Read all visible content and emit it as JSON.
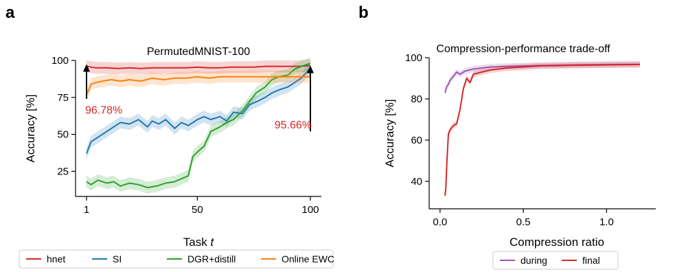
{
  "panels": {
    "a": {
      "letter": "a"
    },
    "b": {
      "letter": "b"
    }
  },
  "chart_data": [
    {
      "type": "line",
      "title": "PermutedMNIST-100",
      "xlabel": "Task t",
      "xlabel_prefix": "Task ",
      "xlabel_var": "t",
      "ylabel": "Accuracy [%]",
      "xlim": [
        1,
        100
      ],
      "ylim": [
        8,
        100
      ],
      "xticks": [
        1,
        50,
        100
      ],
      "yticks": [
        25,
        50,
        75,
        100
      ],
      "grid": false,
      "legend_position": "bottom",
      "colors": {
        "hnet": "#d62728",
        "SI": "#1f77b4",
        "DGR+distill": "#2ca02c",
        "Online EWC": "#ff7f0e"
      },
      "annotations": [
        {
          "text": "96.78%",
          "x": 1,
          "y": 97.5
        },
        {
          "text": "95.66%",
          "x": 100,
          "y": 96.5
        }
      ],
      "series": [
        {
          "name": "hnet",
          "x": [
            1,
            5,
            10,
            15,
            20,
            25,
            30,
            35,
            40,
            45,
            50,
            55,
            60,
            65,
            70,
            75,
            80,
            85,
            90,
            95,
            100
          ],
          "y": [
            96,
            95,
            95,
            94.5,
            95,
            94.5,
            95,
            95,
            95,
            95,
            95.5,
            95,
            95,
            95.5,
            95.5,
            95.5,
            96,
            96,
            96,
            96,
            96.5
          ]
        },
        {
          "name": "SI",
          "x": [
            1,
            3,
            6,
            10,
            13,
            16,
            20,
            24,
            28,
            30,
            33,
            36,
            40,
            43,
            46,
            50,
            53,
            56,
            60,
            63,
            66,
            70,
            73,
            76,
            80,
            83,
            86,
            90,
            93,
            96,
            100
          ],
          "y": [
            37,
            45,
            48,
            52,
            55,
            58,
            57,
            60,
            55,
            59,
            57,
            60,
            54,
            58,
            56,
            60,
            62,
            60,
            62,
            59,
            65,
            64,
            70,
            72,
            75,
            78,
            80,
            82,
            85,
            88,
            95
          ]
        },
        {
          "name": "DGR+distill",
          "x": [
            1,
            3,
            6,
            10,
            13,
            16,
            20,
            24,
            28,
            32,
            36,
            40,
            43,
            46,
            48,
            50,
            53,
            56,
            60,
            63,
            66,
            70,
            73,
            76,
            80,
            83,
            86,
            90,
            93,
            96,
            100
          ],
          "y": [
            18,
            16,
            19,
            17,
            18,
            15,
            17,
            16,
            14,
            15,
            17,
            18,
            20,
            22,
            35,
            38,
            42,
            52,
            55,
            58,
            60,
            66,
            72,
            78,
            82,
            87,
            89,
            90,
            94,
            96,
            98
          ]
        },
        {
          "name": "Online EWC",
          "x": [
            1,
            2,
            3,
            5,
            8,
            12,
            16,
            20,
            25,
            30,
            35,
            40,
            45,
            50,
            55,
            60,
            65,
            70,
            75,
            80,
            85,
            90,
            95,
            100
          ],
          "y": [
            77,
            80,
            84,
            85,
            86,
            87,
            86,
            87,
            86,
            88,
            87,
            88,
            88,
            89,
            88,
            89,
            89,
            89,
            89,
            89,
            89,
            89,
            89,
            89
          ]
        }
      ]
    },
    {
      "type": "line",
      "title": "Compression-performance trade-off",
      "xlabel": "Compression ratio",
      "ylabel": "Accuracy [%]",
      "xlim": [
        -0.02,
        1.25
      ],
      "ylim": [
        28,
        100
      ],
      "xticks": [
        0.0,
        0.5,
        1.0
      ],
      "xtick_labels": [
        "0.0",
        "0.5",
        "1.0"
      ],
      "yticks": [
        40,
        60,
        80,
        100
      ],
      "grid": false,
      "legend_position": "bottom",
      "colors": {
        "during": "#9b59b6",
        "final": "#d62728"
      },
      "series": [
        {
          "name": "during",
          "x": [
            0.03,
            0.04,
            0.05,
            0.06,
            0.08,
            0.1,
            0.12,
            0.15,
            0.2,
            0.3,
            0.4,
            0.5,
            0.6,
            0.8,
            1.0,
            1.2
          ],
          "y": [
            83,
            86,
            87,
            89,
            91,
            93,
            92,
            93.5,
            94.5,
            95.5,
            95.8,
            96,
            96.2,
            96.5,
            96.7,
            96.8
          ]
        },
        {
          "name": "final",
          "x": [
            0.03,
            0.035,
            0.04,
            0.05,
            0.06,
            0.08,
            0.1,
            0.12,
            0.14,
            0.16,
            0.18,
            0.2,
            0.25,
            0.3,
            0.4,
            0.5,
            0.6,
            0.8,
            1.0,
            1.2
          ],
          "y": [
            33,
            37,
            48,
            63,
            65,
            67,
            68,
            75,
            85,
            90,
            88,
            92,
            93,
            94,
            95,
            95.5,
            96,
            96.3,
            96.5,
            96.7
          ]
        }
      ]
    }
  ]
}
